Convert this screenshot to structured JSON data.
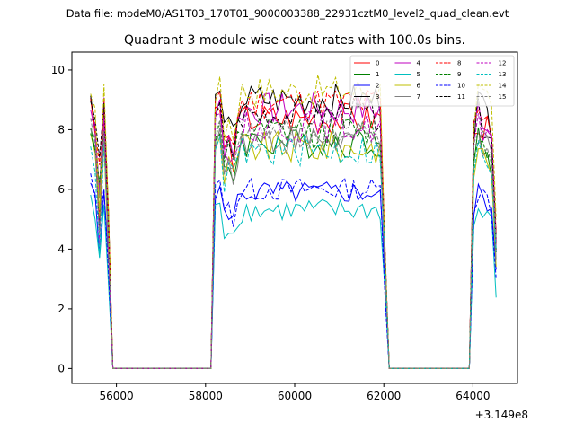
{
  "figure": {
    "suptitle": "Data file: modeM0/AS1T03_170T01_9000003388_22931cztM0_level2_quad_clean.evt",
    "offset_text": "+3.149e8"
  },
  "chart_data": {
    "type": "line",
    "title": "Quadrant 3 module wise count rates with 100.0s bins.",
    "xlabel": "",
    "ylabel": "",
    "x_offset": 314900000,
    "xlim": [
      55000,
      65000
    ],
    "ylim": [
      -0.5,
      10.6
    ],
    "xticks": [
      56000,
      58000,
      60000,
      62000,
      64000
    ],
    "xtick_labels": [
      "56000",
      "58000",
      "60000",
      "62000",
      "64000"
    ],
    "yticks": [
      0,
      2,
      4,
      6,
      8,
      10
    ],
    "ytick_labels": [
      "0",
      "2",
      "4",
      "6",
      "8",
      "10"
    ],
    "grid": false,
    "legend_position": "top-right",
    "segments": [
      {
        "x": [
          55420,
          55520,
          55620,
          55720,
          55820,
          55920
        ],
        "edge_scale": [
          1.0,
          0.95,
          0.65,
          0.95,
          0.55,
          0.0
        ]
      },
      {
        "x": [
          55920,
          58120
        ],
        "edge_scale": [
          0.0,
          0.0
        ]
      },
      {
        "x": [
          58120,
          58220,
          58320,
          58420,
          58520,
          58620,
          58720,
          58820,
          58920,
          59020,
          59120,
          59220,
          59320,
          59420,
          59520,
          59620,
          59720,
          59820,
          59920,
          60020,
          60120,
          60220,
          60320,
          60420,
          60520,
          60620,
          60720,
          60820,
          60920,
          61020,
          61120,
          61220,
          61320,
          61420,
          61520,
          61620,
          61720,
          61820,
          61920,
          62020,
          62120
        ],
        "edge_scale": [
          0.0,
          0.95,
          1.0,
          0.95,
          0.9,
          0.85,
          0.95,
          1,
          1,
          1,
          1,
          1,
          1,
          1,
          1,
          1,
          1,
          1,
          1,
          1,
          1,
          1,
          1,
          1,
          1,
          1,
          1,
          1,
          1,
          1,
          1,
          1,
          1,
          1,
          1,
          1,
          1,
          1,
          1,
          0.5,
          0.0
        ]
      },
      {
        "x": [
          62120,
          63920
        ],
        "edge_scale": [
          0.0,
          0.0
        ]
      },
      {
        "x": [
          63920,
          64020,
          64120,
          64220,
          64320,
          64420,
          64520
        ],
        "edge_scale": [
          0.0,
          0.9,
          1.0,
          0.97,
          0.95,
          0.9,
          0.5
        ]
      }
    ],
    "series": [
      {
        "name": "0",
        "color": "#ff0000",
        "dash": "solid",
        "level": 8.4
      },
      {
        "name": "1",
        "color": "#008000",
        "dash": "solid",
        "level": 7.6
      },
      {
        "name": "2",
        "color": "#0000ff",
        "dash": "solid",
        "level": 5.9
      },
      {
        "name": "3",
        "color": "#000000",
        "dash": "solid",
        "level": 9.0
      },
      {
        "name": "4",
        "color": "#bf00bf",
        "dash": "solid",
        "level": 8.7
      },
      {
        "name": "5",
        "color": "#00bfbf",
        "dash": "solid",
        "level": 5.3
      },
      {
        "name": "6",
        "color": "#bfbf00",
        "dash": "solid",
        "level": 7.4
      },
      {
        "name": "7",
        "color": "#808080",
        "dash": "solid",
        "level": 7.7
      },
      {
        "name": "8",
        "color": "#ff0000",
        "dash": "dashed",
        "level": 8.9
      },
      {
        "name": "9",
        "color": "#008000",
        "dash": "dashed",
        "level": 7.9
      },
      {
        "name": "10",
        "color": "#0000ff",
        "dash": "dashed",
        "level": 6.0
      },
      {
        "name": "11",
        "color": "#000000",
        "dash": "dashed",
        "level": 8.5
      },
      {
        "name": "12",
        "color": "#bf00bf",
        "dash": "dashed",
        "level": 8.1
      },
      {
        "name": "13",
        "color": "#00bfbf",
        "dash": "dashed",
        "level": 7.3
      },
      {
        "name": "14",
        "color": "#bfbf00",
        "dash": "dashed",
        "level": 9.3
      },
      {
        "name": "15",
        "color": "#808080",
        "dash": "dashed",
        "level": 7.8
      }
    ]
  }
}
